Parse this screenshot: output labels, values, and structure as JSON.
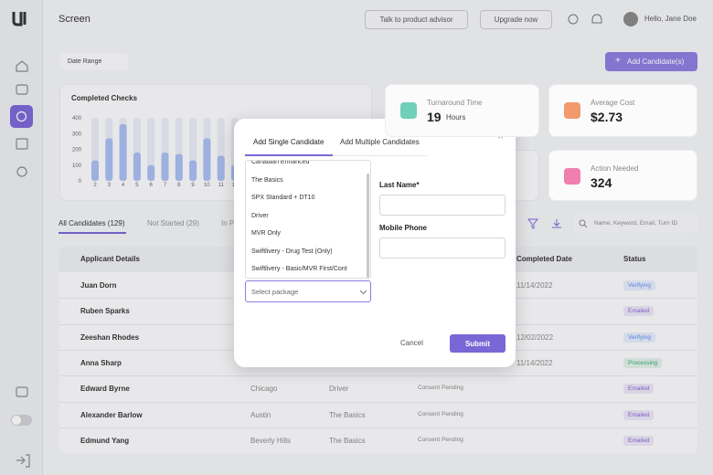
{
  "header": {
    "title": "Screen",
    "advisor_button": "Talk to product advisor",
    "upgrade_button": "Upgrade now",
    "greeting": "Hello, Jane Doe"
  },
  "toolbar": {
    "date_range": "Date Range",
    "add_button": "Add Candidate(s)"
  },
  "chart_data": {
    "type": "bar",
    "title": "Completed Checks",
    "categories": [
      "2",
      "3",
      "4",
      "5",
      "6",
      "7",
      "8",
      "9",
      "10",
      "11",
      "12"
    ],
    "values": [
      130,
      270,
      360,
      180,
      100,
      180,
      170,
      130,
      270,
      160,
      100
    ],
    "color": "#a9bef0",
    "track_color": "#e8ecf5",
    "ylim": [
      0,
      400
    ],
    "yticks": [
      0,
      100,
      200,
      300,
      400
    ]
  },
  "stats": [
    {
      "label": "Turnaround Time",
      "value": "19",
      "unit": "Hours",
      "color": "#6fcfb8"
    },
    {
      "label": "Average Cost",
      "value": "$2.73",
      "color": "#f29a6b"
    },
    {
      "label": "Action Needed",
      "value": "324",
      "color": "#f07fae"
    }
  ],
  "tabs": [
    "All Candidates (129)",
    "Not Started (29)",
    "In P"
  ],
  "search_placeholder": "Name, Keyword, Email, Turn ID",
  "table": {
    "columns": [
      "Applicant Details",
      "Completed Date",
      "Status"
    ],
    "rows": [
      {
        "name": "Juan Dorn",
        "date": "11/14/2022",
        "status": "Verifying",
        "status_color": "#5b8def"
      },
      {
        "name": "Ruben Sparks",
        "status": "Emailed",
        "status_color": "#8a63d2"
      },
      {
        "name": "Zeeshan Rhodes",
        "date": "12/02/2022",
        "status": "Verifying",
        "status_color": "#5b8def"
      },
      {
        "name": "Anna Sharp",
        "date": "11/14/2022",
        "status": "Processing",
        "status_color": "#3aa76d"
      },
      {
        "name": "Edward Byrne",
        "city": "Chicago",
        "package": "Driver",
        "note": "Consent Pending",
        "status": "Emailed",
        "status_color": "#8a63d2"
      },
      {
        "name": "Alexander Barlow",
        "city": "Austin",
        "package": "The Basics",
        "note": "Consent Pending",
        "status": "Emailed",
        "status_color": "#8a63d2"
      },
      {
        "name": "Edmund Yang",
        "city": "Beverly Hills",
        "package": "The Basics",
        "note": "Consent Pending",
        "status": "Emailed",
        "status_color": "#8a63d2"
      }
    ]
  },
  "modal": {
    "tabs": [
      "Add Single Candidate",
      "Add Multiple Candidates"
    ],
    "options": [
      "Canadian Enhanced",
      "The Basics",
      "SPX Standard + DT10",
      "Driver",
      "MVR Only",
      "Swiftlivery - Drug Test (Only)",
      "Swiftlivery - Basic/MVR First/Cont"
    ],
    "select_placeholder": "Select package",
    "last_name_label": "Last Name*",
    "mobile_label": "Mobile Phone",
    "cancel": "Cancel",
    "submit": "Submit"
  }
}
